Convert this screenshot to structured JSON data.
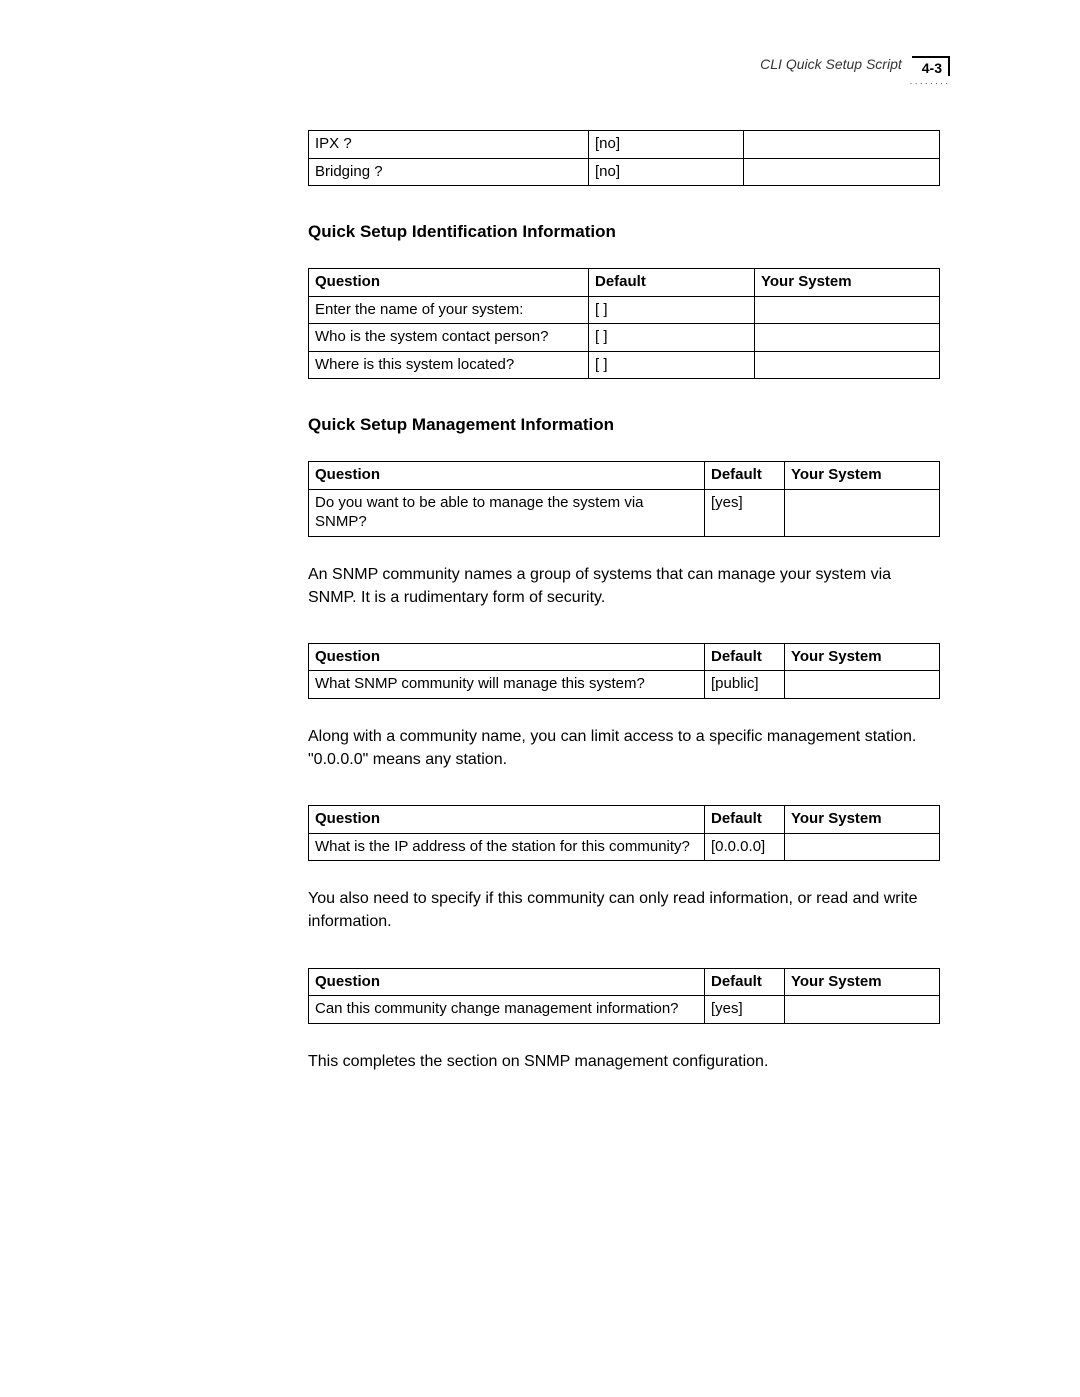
{
  "header": {
    "title": "CLI Quick Setup Script",
    "page_number": "4-3"
  },
  "table1": {
    "rows": [
      {
        "q": "IPX ?",
        "d": "[no]",
        "y": ""
      },
      {
        "q": "Bridging ?",
        "d": "[no]",
        "y": ""
      }
    ]
  },
  "section2": {
    "heading": "Quick Setup Identification Information",
    "table": {
      "headers": {
        "q": "Question",
        "d": "Default",
        "y": "Your System"
      },
      "rows": [
        {
          "q": "Enter the name of your system:",
          "d": "[ ]",
          "y": ""
        },
        {
          "q": "Who is the system contact person?",
          "d": "[ ]",
          "y": ""
        },
        {
          "q": "Where is this system located?",
          "d": "[ ]",
          "y": ""
        }
      ]
    }
  },
  "section3": {
    "heading": "Quick Setup Management Information",
    "table1": {
      "headers": {
        "q": "Question",
        "d": "Default",
        "y": "Your System"
      },
      "rows": [
        {
          "q": "Do you want to be able to manage the system via SNMP?",
          "d": "[yes]",
          "y": ""
        }
      ]
    },
    "para1": "An SNMP community names a group of systems that can manage your system via SNMP. It is a rudimentary form of security.",
    "table2": {
      "headers": {
        "q": "Question",
        "d": "Default",
        "y": "Your System"
      },
      "rows": [
        {
          "q": "What SNMP community will manage this system?",
          "d": "[public]",
          "y": ""
        }
      ]
    },
    "para2": "Along with a community name, you can limit access to a specific management station. \"0.0.0.0\" means any station.",
    "table3": {
      "headers": {
        "q": "Question",
        "d": "Default",
        "y": "Your System"
      },
      "rows": [
        {
          "q": "What is the IP address of the station for this community?",
          "d": "[0.0.0.0]",
          "y": ""
        }
      ]
    },
    "para3": "You also need to specify if this community can only read information, or read and write information.",
    "table4": {
      "headers": {
        "q": "Question",
        "d": "Default",
        "y": "Your System"
      },
      "rows": [
        {
          "q": "Can this community change management information?",
          "d": "[yes]",
          "y": ""
        }
      ]
    },
    "para4": "This completes the section on SNMP management configuration."
  }
}
